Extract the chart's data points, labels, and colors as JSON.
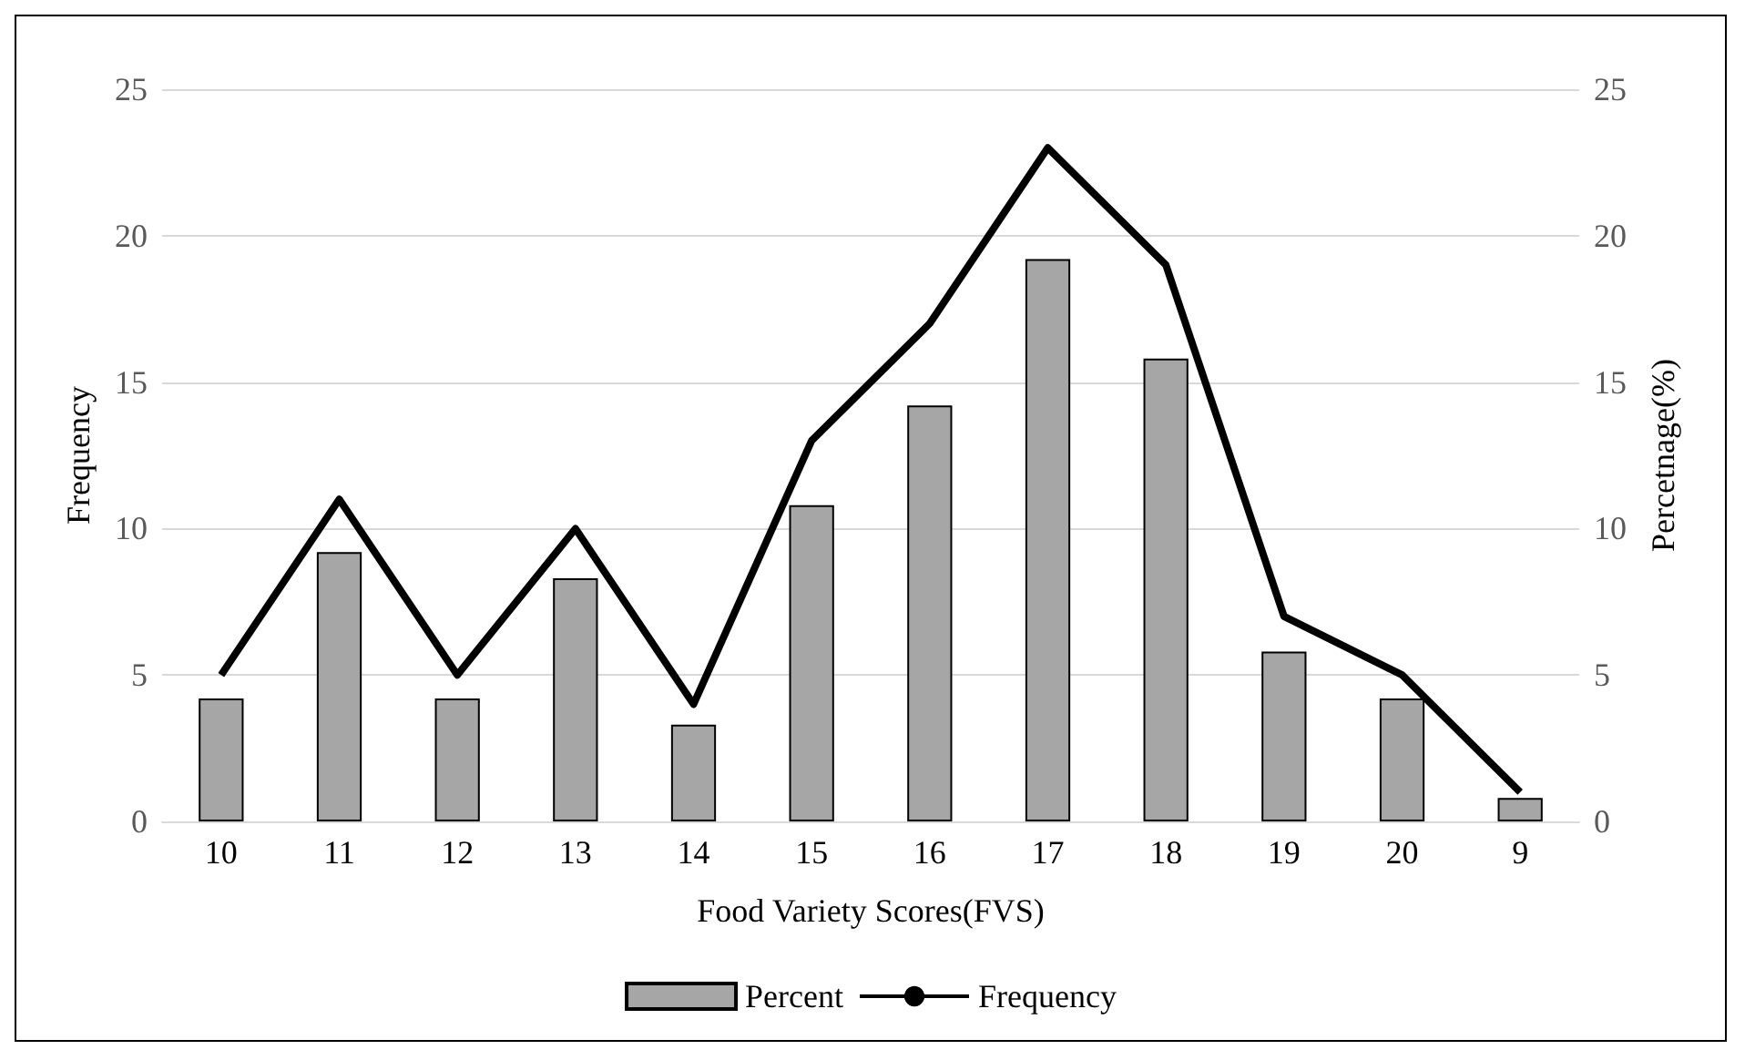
{
  "chart_data": {
    "type": "bar",
    "xlabel": "Food Variety Scores(FVS)",
    "ylabel": "Frequency",
    "y2label": "Percetnage(%)",
    "categories": [
      "10",
      "11",
      "12",
      "13",
      "14",
      "15",
      "16",
      "17",
      "18",
      "19",
      "20",
      "9"
    ],
    "series": [
      {
        "name": "Percent",
        "axis": "y2",
        "color": "#a6a6a6",
        "values": [
          4.2,
          9.2,
          4.2,
          8.3,
          3.3,
          10.8,
          14.2,
          19.2,
          15.8,
          5.8,
          4.2,
          0.8
        ]
      },
      {
        "name": "Frequency",
        "type": "line",
        "color": "#000000",
        "values": [
          5,
          11,
          5,
          10,
          4,
          13,
          17,
          23,
          19,
          7,
          5,
          1
        ]
      }
    ],
    "ylim": [
      0,
      25
    ],
    "yticks": [
      0,
      5,
      10,
      15,
      20,
      25
    ],
    "y2lim": [
      0,
      25
    ],
    "y2ticks": [
      0,
      5,
      10,
      15,
      20,
      25
    ],
    "grid": "y",
    "legend": "bottom",
    "marker": "none",
    "line_style": "solid"
  }
}
